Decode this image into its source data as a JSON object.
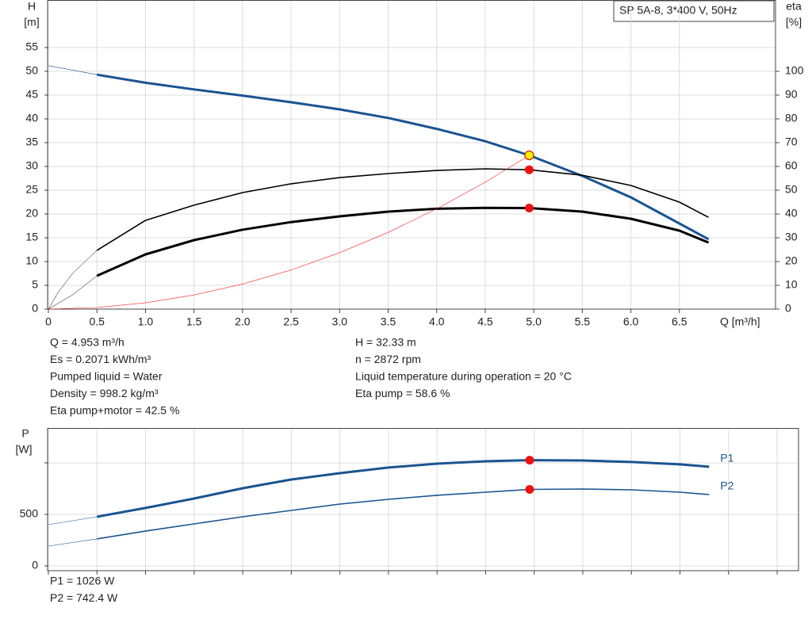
{
  "chart_data": [
    {
      "type": "line",
      "title": "SP 5A-8, 3*400 V, 50Hz",
      "y_label": "H",
      "y_unit": "[m]",
      "y2_label": "eta",
      "y2_unit": "[%]",
      "x_label": "Q [m³/h]",
      "xlim": [
        0,
        7.49
      ],
      "ylim": [
        0,
        65
      ],
      "y2lim": [
        0,
        130
      ],
      "grid": true,
      "xticks": [
        0,
        0.5,
        {
          "value": 1,
          "label": "1.0"
        },
        1.5,
        {
          "value": 2,
          "label": "2.0"
        },
        2.5,
        {
          "value": 3,
          "label": "3.0"
        },
        3.5,
        {
          "value": 4,
          "label": "4.0"
        },
        4.5,
        {
          "value": 5,
          "label": "5.0"
        },
        5.5,
        {
          "value": 6,
          "label": "6.0"
        },
        6.5
      ],
      "yticks": [
        0,
        5,
        10,
        15,
        20,
        25,
        30,
        35,
        40,
        45,
        50,
        55
      ],
      "y2ticks": [
        0,
        10,
        20,
        30,
        40,
        50,
        60,
        70,
        80,
        90,
        100
      ],
      "series": [
        {
          "color": "#1a5490",
          "width": 0.6,
          "x": [
            0,
            0.5
          ],
          "values": [
            51.2,
            49.3
          ]
        },
        {
          "color": "#1a5490",
          "width": 3,
          "x": [
            0.5,
            1,
            1.5,
            2,
            2.5,
            3,
            3.5,
            4,
            4.5,
            4.953,
            5.5,
            6,
            6.5,
            6.8
          ],
          "values": [
            49.3,
            47.6,
            46.2,
            44.9,
            43.5,
            42.0,
            40.2,
            37.9,
            35.3,
            32.33,
            28,
            23.5,
            18,
            14.7
          ]
        },
        {
          "color": "#000000",
          "width": 0.5,
          "axis": "y2",
          "x": [
            0,
            0.1,
            0.25,
            0.5
          ],
          "values": [
            0,
            7,
            15,
            24.7
          ]
        },
        {
          "color": "#000000",
          "width": 1.6,
          "axis": "y2",
          "x": [
            0.5,
            1,
            1.5,
            2,
            2.5,
            3,
            3.5,
            4,
            4.5,
            4.953,
            5.5,
            6,
            6.5,
            6.8
          ],
          "values": [
            24.7,
            37.3,
            43.7,
            49,
            52.7,
            55.3,
            57,
            58.3,
            59,
            58.6,
            56.3,
            52,
            45,
            38.6
          ]
        },
        {
          "color": "#000000",
          "width": 0.5,
          "axis": "y2",
          "x": [
            0,
            0.25,
            0.5
          ],
          "values": [
            0,
            6,
            14
          ]
        },
        {
          "color": "#000000",
          "width": 3,
          "axis": "y2",
          "x": [
            0.5,
            1,
            1.5,
            2,
            2.5,
            3,
            3.5,
            4,
            4.5,
            4.953,
            5.5,
            6,
            6.5,
            6.8
          ],
          "values": [
            14,
            23,
            29,
            33.4,
            36.6,
            39,
            41,
            42.2,
            42.6,
            42.5,
            41,
            38,
            33,
            28
          ]
        },
        {
          "color": "#ff2020",
          "width": 0.6,
          "x": [
            0,
            0.5,
            1,
            1.5,
            2,
            2.5,
            3,
            3.5,
            4,
            4.5,
            4.953
          ],
          "values": [
            0,
            0.33,
            1.32,
            2.97,
            5.27,
            8.24,
            11.86,
            16.14,
            21.09,
            26.69,
            32.33
          ]
        }
      ],
      "points": [
        {
          "x": 4.953,
          "value": 58.6,
          "axis": "y2",
          "color": "#ee1111"
        },
        {
          "x": 4.953,
          "value": 42.5,
          "axis": "y2",
          "color": "#ee1111"
        },
        {
          "x": 4.953,
          "value": 32.33,
          "color": "#ffee00"
        }
      ]
    },
    {
      "type": "line",
      "y_label": "P",
      "y_unit": "[W]",
      "xlim": [
        0,
        7.72
      ],
      "ylim": [
        -46,
        1338
      ],
      "grid": true,
      "xticks": [
        {
          "value": 0,
          "label": null
        },
        {
          "value": 0.5,
          "label": null
        },
        {
          "value": 1,
          "label": null
        },
        {
          "value": 1.5,
          "label": null
        },
        {
          "value": 2,
          "label": null
        },
        {
          "value": 2.5,
          "label": null
        },
        {
          "value": 3,
          "label": null
        },
        {
          "value": 3.5,
          "label": null
        },
        {
          "value": 4,
          "label": null
        },
        {
          "value": 4.5,
          "label": null
        },
        {
          "value": 5,
          "label": null
        },
        {
          "value": 5.5,
          "label": null
        },
        {
          "value": 6,
          "label": null
        },
        {
          "value": 6.5,
          "label": null
        },
        {
          "value": 7,
          "label": null
        },
        {
          "value": 7.5,
          "label": null
        }
      ],
      "yticks": [
        0,
        500,
        {
          "value": 1000,
          "label": null
        }
      ],
      "series": [
        {
          "color": "#1a5490",
          "width": 0.6,
          "x": [
            0,
            0.5
          ],
          "values": [
            400,
            477
          ]
        },
        {
          "name": "P1",
          "color": "#1a5490",
          "width": 3,
          "x": [
            0.5,
            1,
            1.5,
            2,
            2.5,
            3,
            3.5,
            4,
            4.5,
            4.953,
            5.5,
            6,
            6.5,
            6.8
          ],
          "values": [
            477,
            562,
            654,
            754,
            838,
            900,
            954,
            992,
            1015,
            1026,
            1023,
            1008,
            985,
            962
          ]
        },
        {
          "color": "#1a5490",
          "width": 0.6,
          "x": [
            0,
            0.5
          ],
          "values": [
            192,
            262
          ]
        },
        {
          "name": "P2",
          "color": "#1a5490",
          "width": 1.6,
          "x": [
            0.5,
            1,
            1.5,
            2,
            2.5,
            3,
            3.5,
            4,
            4.5,
            4.953,
            5.5,
            6,
            6.5,
            6.8
          ],
          "values": [
            262,
            338,
            408,
            477,
            538,
            600,
            646,
            685,
            715,
            742.4,
            746,
            738,
            715,
            692
          ]
        }
      ],
      "points": [
        {
          "x": 4.953,
          "value": 1026,
          "color": "#ee1111"
        },
        {
          "x": 4.953,
          "value": 742.4,
          "color": "#ee1111"
        }
      ]
    }
  ],
  "info": {
    "left": [
      "Q = 4.953 m³/h",
      "Es = 0.2071 kWh/m³",
      "Pumped liquid = Water",
      "Density = 998.2 kg/m³",
      "Eta pump+motor = 42.5 %"
    ],
    "right": [
      "H = 32.33 m",
      "n = 2872 rpm",
      "Liquid temperature during operation = 20 °C",
      "Eta pump = 58.6 %"
    ]
  },
  "footer": [
    "P1 = 1026 W",
    "P2 = 742.4 W"
  ]
}
